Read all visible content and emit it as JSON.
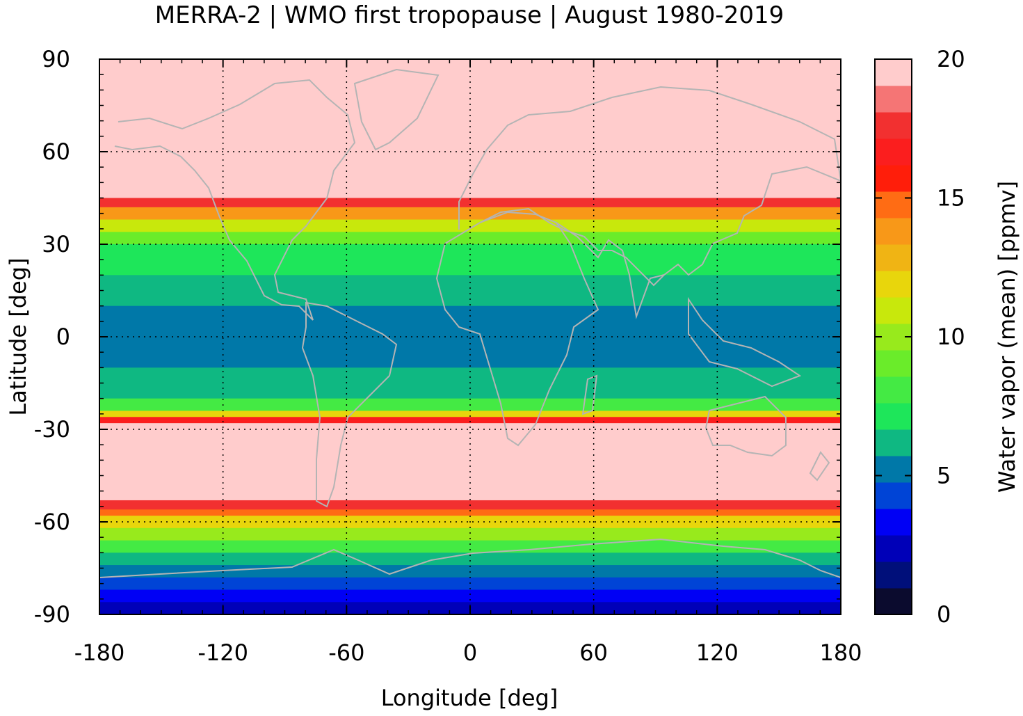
{
  "title": "MERRA-2 | WMO first tropopause | August 1980-2019",
  "x_axis": {
    "label": "Longitude [deg]",
    "ticks": [
      -180,
      -120,
      -60,
      0,
      60,
      120,
      180
    ],
    "range": [
      -180,
      180
    ]
  },
  "y_axis": {
    "label": "Latitude [deg]",
    "ticks": [
      -90,
      -60,
      -30,
      0,
      30,
      60,
      90
    ],
    "range": [
      -90,
      90
    ]
  },
  "colorbar": {
    "label": "Water vapor (mean) [ppmv]",
    "ticks": [
      0,
      5,
      10,
      15,
      20
    ],
    "range": [
      0,
      20
    ],
    "colors": [
      "#0b0b2e",
      "#000f7a",
      "#0000b8",
      "#0000f5",
      "#0044d6",
      "#0078a8",
      "#0fb882",
      "#1ee65a",
      "#44ea44",
      "#6aec2a",
      "#98ea1c",
      "#c8e80c",
      "#e8d60c",
      "#f0b414",
      "#f89818",
      "#ff6c14",
      "#ff1e0a",
      "#fb1e1e",
      "#f23030",
      "#f57575",
      "#ffcccc"
    ]
  },
  "chart_data": {
    "type": "heatmap",
    "title": "MERRA-2 | WMO first tropopause | August 1980-2019",
    "xlabel": "Longitude [deg]",
    "ylabel": "Latitude [deg]",
    "xlim": [
      -180,
      180
    ],
    "ylim": [
      -90,
      90
    ],
    "colorbar_label": "Water vapor (mean) [ppmv]",
    "clim": [
      0,
      20
    ],
    "grid": true,
    "coastlines": true,
    "zonal_mean_profile": {
      "lat": [
        90,
        45,
        42,
        38,
        34,
        30,
        20,
        10,
        0,
        -10,
        -20,
        -24,
        -26,
        -28,
        -35,
        -50,
        -53,
        -56,
        -58,
        -62,
        -66,
        -70,
        -74,
        -78,
        -82,
        -86,
        -90
      ],
      "value": [
        20,
        20,
        16,
        12,
        10,
        8.5,
        7,
        6,
        5.5,
        6,
        7.5,
        10,
        14,
        20,
        20,
        20,
        20,
        16,
        14,
        11,
        9,
        7,
        6,
        5,
        3.5,
        3,
        2.5
      ]
    }
  }
}
